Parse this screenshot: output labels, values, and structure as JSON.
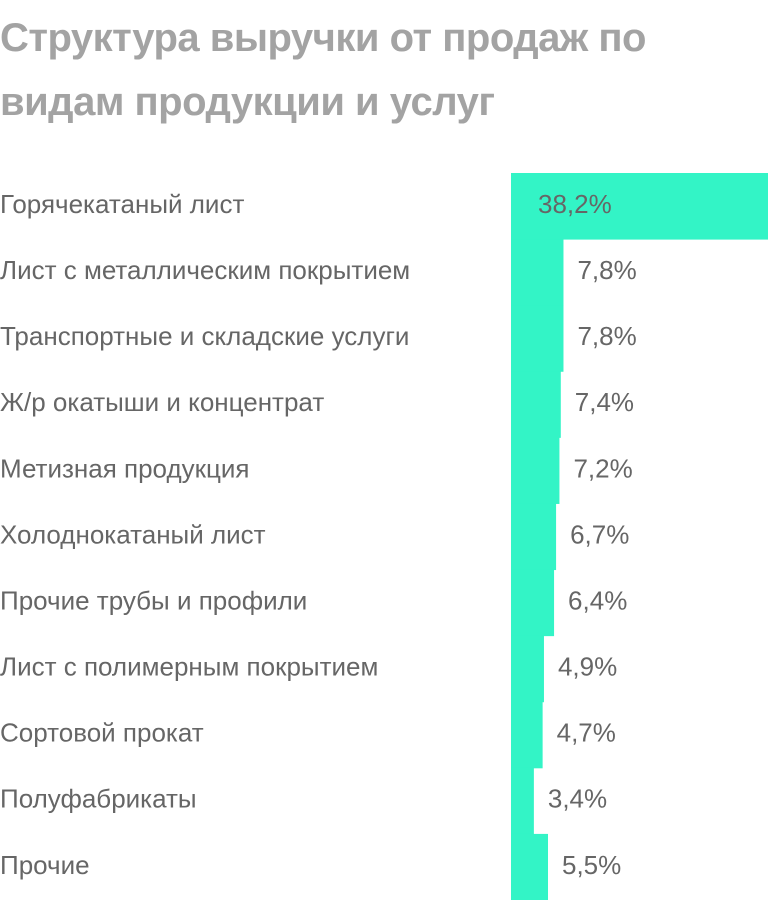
{
  "chart_data": {
    "type": "bar",
    "orientation": "horizontal",
    "title": "Структура выручки от продаж по видам продукции и услуг",
    "categories": [
      "Горячекатаный лист",
      "Лист с металлическим покрытием",
      "Транспортные и складские услуги",
      "Ж/р окатыши и концентрат",
      "Метизная продукция",
      "Холоднокатаный лист",
      "Прочие трубы и профили",
      "Лист с полимерным покрытием",
      "Сортовой прокат",
      "Полуфабрикаты",
      "Прочие"
    ],
    "values": [
      38.2,
      7.8,
      7.8,
      7.4,
      7.2,
      6.7,
      6.4,
      4.9,
      4.7,
      3.4,
      5.5
    ],
    "value_labels": [
      "38,2%",
      "7,8%",
      "7,8%",
      "7,4%",
      "7,2%",
      "6,7%",
      "6,4%",
      "4,9%",
      "4,7%",
      "3,4%",
      "5,5%"
    ],
    "color": "#33f4c6"
  }
}
